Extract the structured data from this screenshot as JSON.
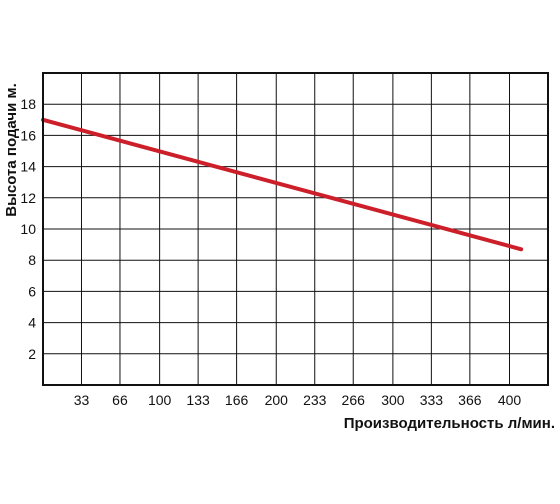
{
  "chart_data": {
    "type": "line",
    "xlabel": "Производительность л/мин.",
    "ylabel": "Высота подачи м.",
    "x_ticks": [
      "33",
      "66",
      "100",
      "133",
      "166",
      "200",
      "233",
      "266",
      "300",
      "333",
      "366",
      "400"
    ],
    "y_ticks": [
      "2",
      "4",
      "6",
      "8",
      "10",
      "12",
      "14",
      "16",
      "18"
    ],
    "xlim": [
      0,
      433
    ],
    "ylim": [
      0,
      20
    ],
    "grid": true,
    "series": [
      {
        "values": [
          [
            0,
            17.0
          ],
          [
            410,
            8.7
          ]
        ],
        "color": "#cc1f2a"
      }
    ]
  }
}
